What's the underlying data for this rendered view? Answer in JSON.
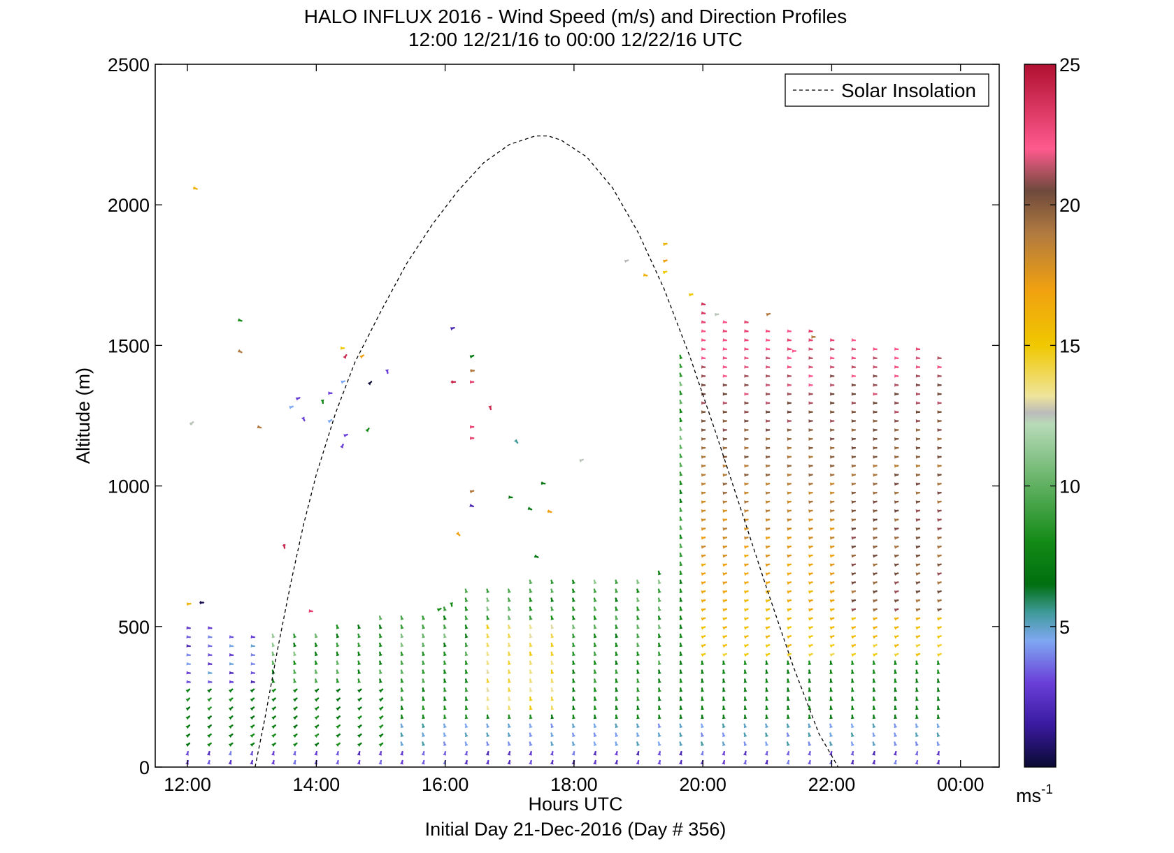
{
  "chart_data": {
    "type": "quiver",
    "title": "HALO INFLUX 2016 - Wind Speed (m/s) and Direction Profiles",
    "subtitle": "12:00 12/21/16 to 00:00 12/22/16  UTC",
    "xlabel": "Hours UTC",
    "footer": "Initial Day 21-Dec-2016 (Day # 356)",
    "ylabel": "Altitude (m)",
    "xlim": [
      11.5,
      24.6
    ],
    "ylim": [
      0,
      2500
    ],
    "xticks": [
      12,
      14,
      16,
      18,
      20,
      22,
      24
    ],
    "xtick_labels": [
      "12:00",
      "14:00",
      "16:00",
      "18:00",
      "20:00",
      "22:00",
      "00:00"
    ],
    "yticks": [
      0,
      500,
      1000,
      1500,
      2000,
      2500
    ],
    "ytick_labels": [
      "0",
      "500",
      "1000",
      "1500",
      "2000",
      "2500"
    ],
    "legend": {
      "entries": [
        "Solar Insolation"
      ],
      "placement": "top-right"
    },
    "colorbar": {
      "label": "ms-1",
      "min": 0,
      "max": 25,
      "ticks": [
        5,
        10,
        15,
        20,
        25
      ],
      "tick_labels": [
        "5",
        "10",
        "15",
        "20",
        "25"
      ],
      "colormap": [
        [
          0,
          "#0a0a33"
        ],
        [
          1.5,
          "#3a1aa0"
        ],
        [
          3,
          "#6a3fd8"
        ],
        [
          4.5,
          "#7fa8f2"
        ],
        [
          5.5,
          "#3f9a9a"
        ],
        [
          6.5,
          "#006f10"
        ],
        [
          8,
          "#138a16"
        ],
        [
          10,
          "#5fb060"
        ],
        [
          12.2,
          "#b8dab8"
        ],
        [
          12.6,
          "#bbbbbb"
        ],
        [
          13.2,
          "#efe49a"
        ],
        [
          15,
          "#f0c800"
        ],
        [
          17,
          "#f0a010"
        ],
        [
          19,
          "#b07a40"
        ],
        [
          20.5,
          "#6e4a3c"
        ],
        [
          22,
          "#ff5a8e"
        ],
        [
          25,
          "#b01030"
        ]
      ]
    },
    "solar_insolation": {
      "style": "dashed",
      "color": "#000000",
      "x": [
        13.05,
        13.2,
        13.4,
        13.6,
        13.8,
        14.0,
        14.3,
        14.6,
        15.0,
        15.4,
        15.8,
        16.2,
        16.6,
        17.0,
        17.4,
        17.6,
        17.8,
        18.2,
        18.6,
        19.0,
        19.4,
        19.8,
        20.2,
        20.6,
        21.0,
        21.4,
        21.8,
        22.1
      ],
      "y": [
        0,
        170,
        420,
        650,
        860,
        1040,
        1260,
        1440,
        1620,
        1790,
        1930,
        2050,
        2150,
        2215,
        2245,
        2245,
        2230,
        2170,
        2060,
        1900,
        1700,
        1460,
        1190,
        910,
        630,
        360,
        120,
        0
      ]
    },
    "arrow_scale_hours_per_ms": 0.016,
    "barbs_scattered": [
      {
        "t": 12.1,
        "z": 2060,
        "u": 12,
        "v": -4,
        "s": 16
      },
      {
        "t": 12.05,
        "z": 1220,
        "u": 10,
        "v": 8,
        "s": 12.5
      },
      {
        "t": 12.0,
        "z": 580,
        "u": 12,
        "v": 1,
        "s": 16
      },
      {
        "t": 12.2,
        "z": 585,
        "u": 12,
        "v": 0,
        "s": 0.5
      },
      {
        "t": 12.8,
        "z": 1590,
        "u": 10,
        "v": -3,
        "s": 8
      },
      {
        "t": 12.8,
        "z": 1480,
        "u": 10,
        "v": -5,
        "s": 19
      },
      {
        "t": 13.1,
        "z": 1210,
        "u": 10,
        "v": -3,
        "s": 19
      },
      {
        "t": 13.5,
        "z": 790,
        "u": 2,
        "v": -12,
        "s": 24
      },
      {
        "t": 13.7,
        "z": 1310,
        "u": 10,
        "v": 4,
        "s": 3
      },
      {
        "t": 13.6,
        "z": 1280,
        "u": 9,
        "v": 3,
        "s": 4.5
      },
      {
        "t": 13.8,
        "z": 1240,
        "u": 4,
        "v": -8,
        "s": 3
      },
      {
        "t": 14.1,
        "z": 1300,
        "u": 1,
        "v": -6,
        "s": 8
      },
      {
        "t": 14.2,
        "z": 1330,
        "u": 10,
        "v": 0,
        "s": 3
      },
      {
        "t": 14.2,
        "z": 1230,
        "u": 9,
        "v": 5,
        "s": 4.5
      },
      {
        "t": 13.9,
        "z": 555,
        "u": 10,
        "v": -1,
        "s": 23
      },
      {
        "t": 14.4,
        "z": 1490,
        "u": 8,
        "v": 0,
        "s": 15
      },
      {
        "t": 14.45,
        "z": 1460,
        "u": 4,
        "v": 6,
        "s": 24
      },
      {
        "t": 14.7,
        "z": 1460,
        "u": 8,
        "v": 5,
        "s": 17
      },
      {
        "t": 14.4,
        "z": 1370,
        "u": 10,
        "v": 3,
        "s": 4.5
      },
      {
        "t": 14.45,
        "z": 1180,
        "u": 8,
        "v": 3,
        "s": 3
      },
      {
        "t": 14.4,
        "z": 1140,
        "u": 4,
        "v": 8,
        "s": 3
      },
      {
        "t": 14.8,
        "z": 1200,
        "u": 4,
        "v": 5,
        "s": 8
      },
      {
        "t": 14.85,
        "z": 1370,
        "u": 1,
        "v": 1,
        "s": 0
      },
      {
        "t": 15.1,
        "z": 1410,
        "u": 2,
        "v": -9,
        "s": 3
      },
      {
        "t": 16.1,
        "z": 1560,
        "u": 10,
        "v": 3,
        "s": 2
      },
      {
        "t": 16.1,
        "z": 1370,
        "u": 14,
        "v": 0,
        "s": 24
      },
      {
        "t": 16.4,
        "z": 1370,
        "u": 10,
        "v": 0,
        "s": 23
      },
      {
        "t": 16.4,
        "z": 1410,
        "u": 12,
        "v": 0,
        "s": 19
      },
      {
        "t": 16.4,
        "z": 1460,
        "u": 10,
        "v": 4,
        "s": 7
      },
      {
        "t": 16.4,
        "z": 1210,
        "u": 10,
        "v": 0,
        "s": 23
      },
      {
        "t": 16.4,
        "z": 1170,
        "u": 10,
        "v": 0,
        "s": 23
      },
      {
        "t": 16.7,
        "z": 1280,
        "u": 2,
        "v": -8,
        "s": 24
      },
      {
        "t": 16.4,
        "z": 980,
        "u": 10,
        "v": 3,
        "s": 19
      },
      {
        "t": 16.4,
        "z": 930,
        "u": 9,
        "v": -3,
        "s": 2
      },
      {
        "t": 16.2,
        "z": 830,
        "u": 6,
        "v": -6,
        "s": 17
      },
      {
        "t": 17.1,
        "z": 1160,
        "u": 6,
        "v": -7,
        "s": 5.5
      },
      {
        "t": 17.5,
        "z": 1010,
        "u": 12,
        "v": -2,
        "s": 7
      },
      {
        "t": 17.0,
        "z": 960,
        "u": 10,
        "v": -1,
        "s": 7
      },
      {
        "t": 17.3,
        "z": 920,
        "u": 10,
        "v": -4,
        "s": 7
      },
      {
        "t": 17.6,
        "z": 910,
        "u": 12,
        "v": -3,
        "s": 17
      },
      {
        "t": 17.4,
        "z": 750,
        "u": 10,
        "v": -4,
        "s": 7
      },
      {
        "t": 18.1,
        "z": 1090,
        "u": 10,
        "v": 4,
        "s": 12.5
      },
      {
        "t": 15.9,
        "z": 560,
        "u": 8,
        "v": 4,
        "s": 8
      },
      {
        "t": 16.1,
        "z": 580,
        "u": 1,
        "v": -8,
        "s": 8
      },
      {
        "t": 18.8,
        "z": 1800,
        "u": 10,
        "v": 3,
        "s": 12.6
      },
      {
        "t": 19.1,
        "z": 1750,
        "u": 8,
        "v": -2,
        "s": 16
      },
      {
        "t": 19.4,
        "z": 1860,
        "u": 10,
        "v": 2,
        "s": 16
      },
      {
        "t": 19.4,
        "z": 1800,
        "u": 10,
        "v": 3,
        "s": 17
      },
      {
        "t": 19.4,
        "z": 1760,
        "u": 9,
        "v": 3,
        "s": 15
      },
      {
        "t": 19.8,
        "z": 1680,
        "u": 10,
        "v": 2,
        "s": 15
      },
      {
        "t": 21.0,
        "z": 1610,
        "u": 10,
        "v": 3,
        "s": 19
      },
      {
        "t": 21.4,
        "z": 1480,
        "u": 10,
        "v": 0,
        "s": 22
      },
      {
        "t": 21.7,
        "z": 1530,
        "u": 10,
        "v": 0,
        "s": 19
      },
      {
        "t": 20.2,
        "z": 1610,
        "u": 10,
        "v": 1,
        "s": 12.5
      }
    ]
  }
}
